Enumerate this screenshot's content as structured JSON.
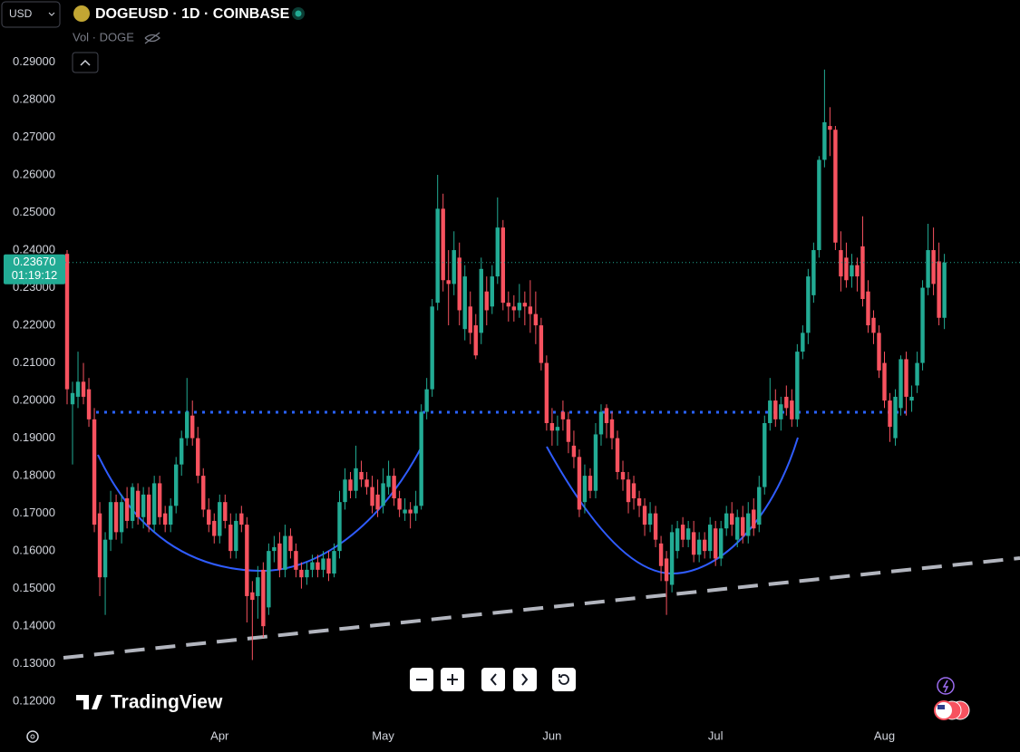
{
  "chart_data": {
    "type": "candlestick",
    "title": "DOGEUSD · 1D · COINBASE",
    "currency": "USD",
    "volume_label": "Vol · DOGE",
    "logo": "TradingView",
    "last_price": {
      "value": 0.2367,
      "label": "0.23670"
    },
    "countdown": "01:19:12",
    "up_color": "#22ab94",
    "down_color": "#f7525f",
    "ylim": [
      0.1145,
      0.3065
    ],
    "yticks": [
      {
        "value": 0.29,
        "label": "0.29000"
      },
      {
        "value": 0.28,
        "label": "0.28000"
      },
      {
        "value": 0.27,
        "label": "0.27000"
      },
      {
        "value": 0.26,
        "label": "0.26000"
      },
      {
        "value": 0.25,
        "label": "0.25000"
      },
      {
        "value": 0.24,
        "label": "0.24000"
      },
      {
        "value": 0.23,
        "label": "0.23000"
      },
      {
        "value": 0.22,
        "label": "0.22000"
      },
      {
        "value": 0.21,
        "label": "0.21000"
      },
      {
        "value": 0.2,
        "label": "0.20000"
      },
      {
        "value": 0.19,
        "label": "0.19000"
      },
      {
        "value": 0.18,
        "label": "0.18000"
      },
      {
        "value": 0.17,
        "label": "0.17000"
      },
      {
        "value": 0.16,
        "label": "0.16000"
      },
      {
        "value": 0.15,
        "label": "0.15000"
      },
      {
        "value": 0.14,
        "label": "0.14000"
      },
      {
        "value": 0.13,
        "label": "0.13000"
      },
      {
        "value": 0.12,
        "label": "0.12000"
      }
    ],
    "grid": false,
    "categories": [
      null,
      null,
      null,
      null,
      null,
      null,
      null,
      null,
      null,
      null,
      null,
      null,
      null,
      null,
      null,
      null,
      null,
      null,
      null,
      null,
      null,
      null,
      null,
      null,
      null,
      null,
      null,
      null,
      "Apr",
      null,
      null,
      null,
      null,
      null,
      null,
      null,
      null,
      null,
      null,
      null,
      null,
      null,
      null,
      null,
      null,
      null,
      null,
      null,
      null,
      null,
      null,
      null,
      null,
      null,
      null,
      null,
      null,
      null,
      "May",
      null,
      null,
      null,
      null,
      null,
      null,
      null,
      null,
      null,
      null,
      null,
      null,
      null,
      null,
      null,
      null,
      null,
      null,
      null,
      null,
      null,
      null,
      null,
      null,
      null,
      null,
      null,
      null,
      null,
      null,
      "Jun",
      null,
      null,
      null,
      null,
      null,
      null,
      null,
      null,
      null,
      null,
      null,
      null,
      null,
      null,
      null,
      null,
      null,
      null,
      null,
      null,
      null,
      null,
      null,
      null,
      null,
      null,
      null,
      null,
      null,
      "Jul",
      null,
      null,
      null,
      null,
      null,
      null,
      null,
      null,
      null,
      null,
      null,
      null,
      null,
      null,
      null,
      null,
      null,
      null,
      null,
      null,
      null,
      null,
      null,
      null,
      null,
      null,
      null,
      null,
      null,
      null,
      "Aug",
      null,
      null,
      null,
      null,
      null,
      null,
      null,
      null,
      null,
      null,
      null
    ],
    "ohlc": [
      [
        0.239,
        0.24,
        0.199,
        0.203
      ],
      [
        0.199,
        0.205,
        0.183,
        0.202
      ],
      [
        0.201,
        0.213,
        0.198,
        0.205
      ],
      [
        0.205,
        0.21,
        0.199,
        0.201
      ],
      [
        0.203,
        0.206,
        0.193,
        0.195
      ],
      [
        0.195,
        0.198,
        0.165,
        0.167
      ],
      [
        0.17,
        0.173,
        0.148,
        0.153
      ],
      [
        0.153,
        0.165,
        0.143,
        0.163
      ],
      [
        0.163,
        0.176,
        0.16,
        0.173
      ],
      [
        0.173,
        0.175,
        0.163,
        0.165
      ],
      [
        0.165,
        0.175,
        0.162,
        0.173
      ],
      [
        0.174,
        0.177,
        0.166,
        0.168
      ],
      [
        0.168,
        0.178,
        0.166,
        0.177
      ],
      [
        0.176,
        0.178,
        0.167,
        0.169
      ],
      [
        0.169,
        0.177,
        0.166,
        0.175
      ],
      [
        0.175,
        0.177,
        0.165,
        0.167
      ],
      [
        0.167,
        0.18,
        0.165,
        0.178
      ],
      [
        0.178,
        0.18,
        0.167,
        0.169
      ],
      [
        0.17,
        0.172,
        0.165,
        0.167
      ],
      [
        0.167,
        0.174,
        0.165,
        0.172
      ],
      [
        0.172,
        0.185,
        0.17,
        0.183
      ],
      [
        0.183,
        0.192,
        0.18,
        0.19
      ],
      [
        0.19,
        0.206,
        0.188,
        0.197
      ],
      [
        0.196,
        0.2,
        0.188,
        0.19
      ],
      [
        0.19,
        0.193,
        0.178,
        0.18
      ],
      [
        0.18,
        0.182,
        0.169,
        0.171
      ],
      [
        0.171,
        0.174,
        0.165,
        0.167
      ],
      [
        0.168,
        0.17,
        0.162,
        0.164
      ],
      [
        0.164,
        0.175,
        0.162,
        0.173
      ],
      [
        0.173,
        0.175,
        0.166,
        0.168
      ],
      [
        0.167,
        0.17,
        0.158,
        0.16
      ],
      [
        0.16,
        0.17,
        0.158,
        0.168
      ],
      [
        0.17,
        0.172,
        0.165,
        0.167
      ],
      [
        0.167,
        0.169,
        0.141,
        0.148
      ],
      [
        0.149,
        0.152,
        0.131,
        0.147
      ],
      [
        0.148,
        0.156,
        0.142,
        0.153
      ],
      [
        0.155,
        0.157,
        0.137,
        0.14
      ],
      [
        0.145,
        0.162,
        0.143,
        0.16
      ],
      [
        0.16,
        0.164,
        0.157,
        0.161
      ],
      [
        0.162,
        0.165,
        0.153,
        0.155
      ],
      [
        0.155,
        0.167,
        0.153,
        0.164
      ],
      [
        0.164,
        0.166,
        0.158,
        0.16
      ],
      [
        0.16,
        0.162,
        0.153,
        0.155
      ],
      [
        0.155,
        0.157,
        0.15,
        0.153
      ],
      [
        0.153,
        0.157,
        0.151,
        0.155
      ],
      [
        0.155,
        0.159,
        0.153,
        0.157
      ],
      [
        0.157,
        0.159,
        0.153,
        0.155
      ],
      [
        0.155,
        0.16,
        0.153,
        0.158
      ],
      [
        0.158,
        0.16,
        0.152,
        0.154
      ],
      [
        0.154,
        0.162,
        0.153,
        0.16
      ],
      [
        0.16,
        0.176,
        0.158,
        0.173
      ],
      [
        0.173,
        0.182,
        0.171,
        0.179
      ],
      [
        0.179,
        0.181,
        0.174,
        0.176
      ],
      [
        0.176,
        0.188,
        0.174,
        0.182
      ],
      [
        0.181,
        0.184,
        0.177,
        0.179
      ],
      [
        0.179,
        0.181,
        0.175,
        0.177
      ],
      [
        0.177,
        0.18,
        0.17,
        0.172
      ],
      [
        0.175,
        0.179,
        0.169,
        0.171
      ],
      [
        0.172,
        0.182,
        0.17,
        0.178
      ],
      [
        0.177,
        0.184,
        0.175,
        0.18
      ],
      [
        0.18,
        0.182,
        0.172,
        0.174
      ],
      [
        0.174,
        0.176,
        0.169,
        0.171
      ],
      [
        0.17,
        0.174,
        0.168,
        0.171
      ],
      [
        0.171,
        0.173,
        0.166,
        0.17
      ],
      [
        0.17,
        0.176,
        0.168,
        0.172
      ],
      [
        0.172,
        0.199,
        0.171,
        0.197
      ],
      [
        0.197,
        0.206,
        0.195,
        0.203
      ],
      [
        0.203,
        0.227,
        0.201,
        0.225
      ],
      [
        0.226,
        0.26,
        0.224,
        0.251
      ],
      [
        0.251,
        0.255,
        0.229,
        0.232
      ],
      [
        0.232,
        0.24,
        0.22,
        0.231
      ],
      [
        0.231,
        0.245,
        0.228,
        0.24
      ],
      [
        0.238,
        0.242,
        0.22,
        0.224
      ],
      [
        0.219,
        0.236,
        0.216,
        0.233
      ],
      [
        0.225,
        0.229,
        0.215,
        0.218
      ],
      [
        0.22,
        0.223,
        0.211,
        0.212
      ],
      [
        0.218,
        0.238,
        0.215,
        0.235
      ],
      [
        0.229,
        0.233,
        0.22,
        0.224
      ],
      [
        0.225,
        0.236,
        0.223,
        0.233
      ],
      [
        0.233,
        0.254,
        0.231,
        0.246
      ],
      [
        0.246,
        0.248,
        0.224,
        0.226
      ],
      [
        0.226,
        0.229,
        0.221,
        0.225
      ],
      [
        0.225,
        0.228,
        0.221,
        0.224
      ],
      [
        0.224,
        0.231,
        0.222,
        0.226
      ],
      [
        0.226,
        0.229,
        0.22,
        0.225
      ],
      [
        0.225,
        0.232,
        0.218,
        0.223
      ],
      [
        0.223,
        0.229,
        0.215,
        0.22
      ],
      [
        0.22,
        0.222,
        0.208,
        0.21
      ],
      [
        0.21,
        0.212,
        0.192,
        0.194
      ],
      [
        0.194,
        0.198,
        0.188,
        0.192
      ],
      [
        0.192,
        0.196,
        0.188,
        0.193
      ],
      [
        0.197,
        0.2,
        0.192,
        0.195
      ],
      [
        0.195,
        0.197,
        0.186,
        0.189
      ],
      [
        0.188,
        0.192,
        0.182,
        0.185
      ],
      [
        0.185,
        0.187,
        0.169,
        0.171
      ],
      [
        0.173,
        0.183,
        0.17,
        0.18
      ],
      [
        0.18,
        0.182,
        0.174,
        0.176
      ],
      [
        0.176,
        0.194,
        0.174,
        0.191
      ],
      [
        0.191,
        0.199,
        0.188,
        0.197
      ],
      [
        0.198,
        0.199,
        0.19,
        0.194
      ],
      [
        0.195,
        0.197,
        0.187,
        0.19
      ],
      [
        0.19,
        0.192,
        0.179,
        0.181
      ],
      [
        0.181,
        0.184,
        0.176,
        0.179
      ],
      [
        0.179,
        0.181,
        0.17,
        0.173
      ],
      [
        0.178,
        0.18,
        0.171,
        0.174
      ],
      [
        0.174,
        0.176,
        0.169,
        0.172
      ],
      [
        0.172,
        0.174,
        0.164,
        0.167
      ],
      [
        0.167,
        0.173,
        0.165,
        0.17
      ],
      [
        0.17,
        0.172,
        0.161,
        0.163
      ],
      [
        0.162,
        0.164,
        0.152,
        0.156
      ],
      [
        0.158,
        0.16,
        0.143,
        0.152
      ],
      [
        0.151,
        0.167,
        0.149,
        0.165
      ],
      [
        0.16,
        0.168,
        0.158,
        0.166
      ],
      [
        0.167,
        0.169,
        0.161,
        0.163
      ],
      [
        0.163,
        0.168,
        0.161,
        0.166
      ],
      [
        0.165,
        0.168,
        0.157,
        0.159
      ],
      [
        0.159,
        0.165,
        0.157,
        0.163
      ],
      [
        0.163,
        0.165,
        0.158,
        0.16
      ],
      [
        0.16,
        0.169,
        0.158,
        0.167
      ],
      [
        0.166,
        0.168,
        0.156,
        0.158
      ],
      [
        0.158,
        0.168,
        0.156,
        0.166
      ],
      [
        0.166,
        0.172,
        0.164,
        0.17
      ],
      [
        0.17,
        0.173,
        0.164,
        0.167
      ],
      [
        0.163,
        0.171,
        0.161,
        0.169
      ],
      [
        0.169,
        0.172,
        0.162,
        0.164
      ],
      [
        0.164,
        0.173,
        0.162,
        0.17
      ],
      [
        0.171,
        0.174,
        0.164,
        0.166
      ],
      [
        0.167,
        0.18,
        0.165,
        0.177
      ],
      [
        0.177,
        0.196,
        0.175,
        0.194
      ],
      [
        0.194,
        0.206,
        0.192,
        0.2
      ],
      [
        0.2,
        0.203,
        0.193,
        0.195
      ],
      [
        0.195,
        0.201,
        0.192,
        0.199
      ],
      [
        0.201,
        0.204,
        0.196,
        0.198
      ],
      [
        0.2,
        0.203,
        0.193,
        0.195
      ],
      [
        0.195,
        0.215,
        0.193,
        0.213
      ],
      [
        0.213,
        0.22,
        0.211,
        0.218
      ],
      [
        0.218,
        0.235,
        0.215,
        0.233
      ],
      [
        0.228,
        0.242,
        0.226,
        0.24
      ],
      [
        0.24,
        0.265,
        0.238,
        0.264
      ],
      [
        0.264,
        0.288,
        0.262,
        0.274
      ],
      [
        0.273,
        0.278,
        0.265,
        0.272
      ],
      [
        0.272,
        0.273,
        0.24,
        0.242
      ],
      [
        0.24,
        0.245,
        0.229,
        0.233
      ],
      [
        0.238,
        0.242,
        0.23,
        0.232
      ],
      [
        0.233,
        0.239,
        0.23,
        0.236
      ],
      [
        0.236,
        0.238,
        0.229,
        0.233
      ],
      [
        0.241,
        0.249,
        0.225,
        0.227
      ],
      [
        0.229,
        0.232,
        0.218,
        0.22
      ],
      [
        0.222,
        0.224,
        0.215,
        0.218
      ],
      [
        0.218,
        0.22,
        0.206,
        0.208
      ],
      [
        0.21,
        0.213,
        0.198,
        0.2
      ],
      [
        0.2,
        0.202,
        0.189,
        0.193
      ],
      [
        0.19,
        0.203,
        0.188,
        0.201
      ],
      [
        0.198,
        0.212,
        0.196,
        0.211
      ],
      [
        0.211,
        0.213,
        0.196,
        0.201
      ],
      [
        0.2,
        0.204,
        0.197,
        0.201
      ],
      [
        0.204,
        0.213,
        0.202,
        0.21
      ],
      [
        0.21,
        0.232,
        0.208,
        0.23
      ],
      [
        0.23,
        0.247,
        0.228,
        0.24
      ],
      [
        0.24,
        0.246,
        0.228,
        0.231
      ],
      [
        0.237,
        0.242,
        0.22,
        0.222
      ],
      [
        0.222,
        0.239,
        0.219,
        0.2367
      ]
    ]
  }
}
